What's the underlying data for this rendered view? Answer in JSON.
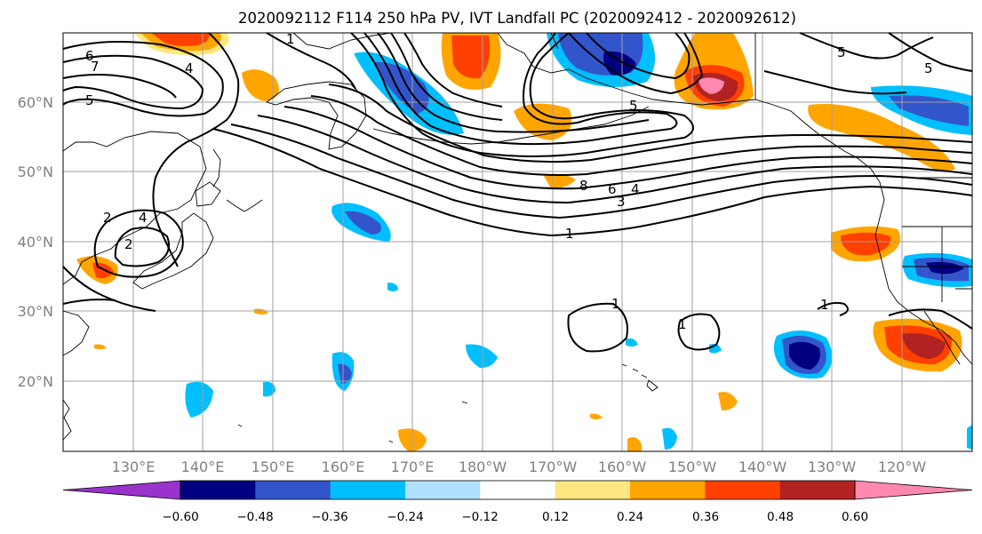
{
  "title": "2020092112 F114 250 hPa PV, IVT Landfall PC (2020092412 - 2020092612)",
  "lat_labels": [
    "60°N",
    "50°N",
    "40°N",
    "30°N",
    "20°N"
  ],
  "lon_labels": [
    "130°E",
    "140°E",
    "150°E",
    "160°E",
    "170°E",
    "180°W",
    "170°W",
    "160°W",
    "150°W",
    "140°W",
    "130°W",
    "120°W"
  ],
  "colorbar": {
    "ticks": [
      "−0.60",
      "−0.48",
      "−0.36",
      "−0.24",
      "−0.12",
      "0.12",
      "0.24",
      "0.36",
      "0.48",
      "0.60"
    ],
    "colors": [
      "#9933cc",
      "#000080",
      "#3355cc",
      "#00bfff",
      "#b0e0ff",
      "#ffffff",
      "#ffe680",
      "#ffa500",
      "#ff4000",
      "#b22222",
      "#ff88b0",
      "#ff88b0"
    ]
  },
  "contour_labels": [
    "1",
    "1",
    "1",
    "1",
    "1",
    "2",
    "2",
    "3",
    "4",
    "4",
    "4",
    "5",
    "5",
    "5",
    "5",
    "6",
    "6",
    "7",
    "8"
  ],
  "colors": {
    "coastline": "#000000",
    "gridline": "#a0a0a0",
    "contour": "#000000"
  }
}
